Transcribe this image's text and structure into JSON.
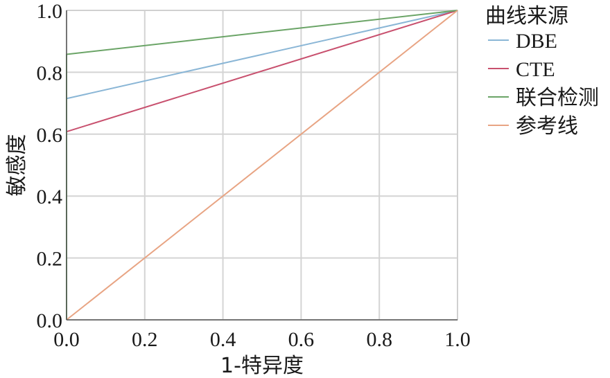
{
  "chart_data": {
    "type": "line",
    "xlabel": "1-特异度",
    "ylabel": "敏感度",
    "xlim": [
      0,
      1
    ],
    "ylim": [
      0,
      1
    ],
    "x_ticks": [
      "0.0",
      "0.2",
      "0.4",
      "0.6",
      "0.8",
      "1.0"
    ],
    "y_ticks": [
      "0.0",
      "0.2",
      "0.4",
      "0.6",
      "0.8",
      "1.0"
    ],
    "grid": true,
    "legend": {
      "title": "曲线来源",
      "position": "right"
    },
    "series": [
      {
        "name": "DBE",
        "color": "#8ab6d6",
        "x": [
          0,
          0,
          1
        ],
        "y": [
          0,
          0.715,
          1
        ]
      },
      {
        "name": "CTE",
        "color": "#c8506e",
        "x": [
          0,
          0,
          1
        ],
        "y": [
          0,
          0.608,
          1
        ]
      },
      {
        "name": "联合检测",
        "color": "#6aa466",
        "x": [
          0,
          0,
          1
        ],
        "y": [
          0,
          0.858,
          1
        ]
      },
      {
        "name": "参考线",
        "color": "#e8a483",
        "x": [
          0,
          1
        ],
        "y": [
          0,
          1
        ]
      }
    ]
  }
}
